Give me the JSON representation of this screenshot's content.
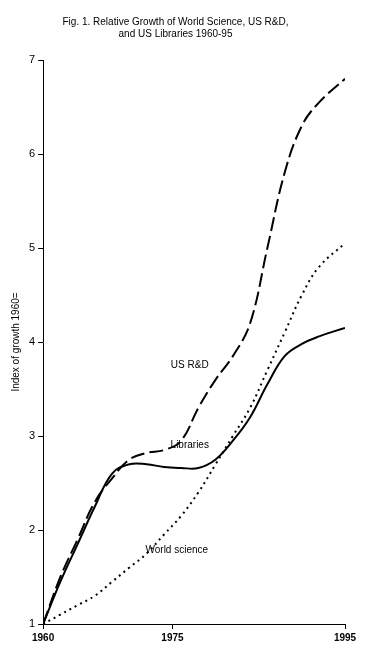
{
  "chart_data": {
    "type": "line",
    "title": [
      "Fig. 1. Relative Growth of World Science, US R&D,",
      "and US Libraries 1960-95"
    ],
    "y_label": "Index of growth 1960=",
    "x": [
      1960,
      1962,
      1964,
      1966,
      1968,
      1970,
      1972,
      1974,
      1976,
      1978,
      1980,
      1982,
      1984,
      1986,
      1988,
      1990,
      1992,
      1995
    ],
    "series": [
      {
        "name": "US R&D",
        "color": "#000000",
        "line_style": "dashed",
        "values": [
          1.0,
          1.5,
          1.9,
          2.3,
          2.55,
          2.75,
          2.82,
          2.85,
          2.95,
          3.3,
          3.6,
          3.85,
          4.2,
          5.0,
          5.8,
          6.3,
          6.55,
          6.8
        ]
      },
      {
        "name": "Libraries",
        "color": "#000000",
        "line_style": "solid",
        "values": [
          1.0,
          1.45,
          1.85,
          2.25,
          2.6,
          2.7,
          2.7,
          2.67,
          2.66,
          2.66,
          2.75,
          2.95,
          3.2,
          3.55,
          3.85,
          3.98,
          4.06,
          4.15
        ]
      },
      {
        "name": "World science",
        "color": "#000000",
        "line_style": "dotted",
        "values": [
          1.0,
          1.1,
          1.2,
          1.3,
          1.45,
          1.6,
          1.75,
          1.95,
          2.15,
          2.4,
          2.7,
          3.0,
          3.3,
          3.7,
          4.1,
          4.5,
          4.8,
          5.05
        ]
      }
    ],
    "annotations": [
      {
        "text": "US R&D",
        "x": 1977,
        "y": 3.75
      },
      {
        "text": "Libraries",
        "x": 1977,
        "y": 2.9
      },
      {
        "text": "World science",
        "x": 1975.5,
        "y": 1.78
      }
    ],
    "xlim": [
      1960,
      1995
    ],
    "xticks": [
      1960,
      1975,
      1995
    ],
    "ylim": [
      1,
      7
    ],
    "yticks": [
      1,
      2,
      3,
      4,
      5,
      6,
      7
    ],
    "grid": false,
    "legend": "none"
  }
}
